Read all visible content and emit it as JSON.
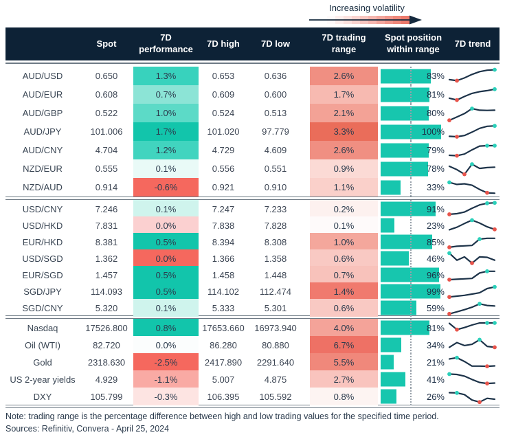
{
  "legend": {
    "label": "Increasing volatility",
    "gradient": [
      "#fefafa",
      "#fdeeec",
      "#fbe2df",
      "#f9d4d0",
      "#f7c6c0",
      "#f5b7b0",
      "#f2a79e",
      "#f0978c",
      "#ee887b",
      "#ec7a6c"
    ],
    "arrow_color": "#14293d"
  },
  "colors": {
    "header_bg": "#0d2236",
    "header_text": "#ffffff",
    "bar_teal": "#17c6ae",
    "sparkline": "#1d3349",
    "dot_teal": "#2bd0ba",
    "dot_red": "#e8544b",
    "divider": "#6e7a85",
    "body_text": "#3d4654"
  },
  "chart_data": {
    "type": "table",
    "columns": [
      [
        ""
      ],
      [
        "Spot"
      ],
      [
        "7D",
        "performance"
      ],
      [
        "7D high"
      ],
      [
        "7D low"
      ],
      [
        "7D trading",
        "range"
      ],
      [
        "Spot position",
        "within range"
      ],
      [
        "7D trend"
      ]
    ],
    "position_axis": {
      "min": 0,
      "max": 100,
      "reference_line_pct": 50
    },
    "sections": [
      {
        "rows": [
          {
            "label": "AUD/USD",
            "spot": "0.650",
            "perf": "1.3%",
            "perf_bg": "#38d2bd",
            "high": "0.653",
            "low": "0.636",
            "range": "2.6%",
            "range_bg": "#f08f82",
            "position_pct": 83,
            "position_label": "83%",
            "trend": {
              "points": [
                2.5,
                2.0,
                3.3,
                5.0,
                6.3,
                7.0,
                7.2
              ],
              "dots": [
                {
                  "i": 1,
                  "c": "red"
                },
                {
                  "i": 6,
                  "c": "teal"
                }
              ]
            }
          },
          {
            "label": "AUD/EUR",
            "spot": "0.608",
            "perf": "0.7%",
            "perf_bg": "#8ce4d6",
            "high": "0.609",
            "low": "0.600",
            "range": "1.7%",
            "range_bg": "#f7bab1",
            "position_pct": 81,
            "position_label": "81%",
            "trend": {
              "points": [
                2.5,
                1.6,
                3.3,
                4.8,
                5.6,
                6.1,
                6.8
              ],
              "dots": [
                {
                  "i": 1,
                  "c": "red"
                },
                {
                  "i": 6,
                  "c": "teal"
                }
              ]
            }
          },
          {
            "label": "AUD/GBP",
            "spot": "0.522",
            "perf": "1.0%",
            "perf_bg": "#5cdac7",
            "high": "0.524",
            "low": "0.513",
            "range": "2.1%",
            "range_bg": "#f3a296",
            "position_pct": 80,
            "position_label": "80%",
            "trend": {
              "points": [
                0.8,
                2.4,
                4.0,
                6.4,
                5.6,
                5.5,
                5.6
              ],
              "dots": [
                {
                  "i": 0,
                  "c": "red"
                },
                {
                  "i": 3,
                  "c": "teal"
                }
              ]
            }
          },
          {
            "label": "AUD/JPY",
            "spot": "101.006",
            "perf": "1.7%",
            "perf_bg": "#12c5ab",
            "high": "101.020",
            "low": "97.779",
            "range": "3.3%",
            "range_bg": "#ea6d5a",
            "position_pct": 100,
            "position_label": "100%",
            "trend": {
              "points": [
                2.0,
                1.8,
                2.4,
                4.0,
                5.8,
                6.8,
                7.0
              ],
              "dots": [
                {
                  "i": 1,
                  "c": "red"
                },
                {
                  "i": 6,
                  "c": "teal"
                }
              ]
            }
          },
          {
            "label": "AUD/CNY",
            "spot": "4.704",
            "perf": "1.2%",
            "perf_bg": "#41d4bf",
            "high": "4.729",
            "low": "4.609",
            "range": "2.6%",
            "range_bg": "#f08f82",
            "position_pct": 79,
            "position_label": "79%",
            "trend": {
              "points": [
                1.8,
                1.6,
                2.4,
                4.4,
                6.2,
                6.4,
                6.4
              ],
              "dots": [
                {
                  "i": 1,
                  "c": "red"
                },
                {
                  "i": 5,
                  "c": "teal"
                },
                {
                  "i": 6,
                  "c": "teal"
                }
              ]
            }
          },
          {
            "label": "NZD/EUR",
            "spot": "0.555",
            "perf": "0.1%",
            "perf_bg": "#e9faf7",
            "high": "0.556",
            "low": "0.551",
            "range": "0.9%",
            "range_bg": "#fbdad5",
            "position_pct": 78,
            "position_label": "78%",
            "trend": {
              "points": [
                5.4,
                3.8,
                1.6,
                6.4,
                4.4,
                4.8,
                5.0
              ],
              "dots": [
                {
                  "i": 2,
                  "c": "red"
                },
                {
                  "i": 3,
                  "c": "teal"
                }
              ]
            }
          },
          {
            "label": "NZD/AUD",
            "spot": "0.914",
            "perf": "-0.6%",
            "perf_bg": "#f5685e",
            "high": "0.921",
            "low": "0.910",
            "range": "1.1%",
            "range_bg": "#fad0ca",
            "position_pct": 33,
            "position_label": "33%",
            "trend": {
              "points": [
                6.6,
                5.6,
                5.9,
                5.2,
                3.2,
                1.6,
                1.4
              ],
              "dots": [
                {
                  "i": 0,
                  "c": "teal"
                },
                {
                  "i": 5,
                  "c": "red"
                }
              ]
            }
          }
        ]
      },
      {
        "rows": [
          {
            "label": "USD/CNY",
            "spot": "7.246",
            "perf": "0.1%",
            "perf_bg": "#cff4ed",
            "high": "7.247",
            "low": "7.233",
            "range": "0.2%",
            "range_bg": "#fdf1ef",
            "position_pct": 91,
            "position_label": "91%",
            "trend": {
              "points": [
                1.5,
                1.8,
                2.6,
                4.4,
                6.0,
                6.8,
                7.0
              ],
              "dots": [
                {
                  "i": 0,
                  "c": "red"
                },
                {
                  "i": 5,
                  "c": "teal"
                },
                {
                  "i": 6,
                  "c": "teal"
                }
              ]
            }
          },
          {
            "label": "USD/HKD",
            "spot": "7.831",
            "perf": "0.0%",
            "perf_bg": "#fbd0d0",
            "high": "7.838",
            "low": "7.828",
            "range": "0.1%",
            "range_bg": "#fefafa",
            "position_pct": 23,
            "position_label": "23%",
            "trend": {
              "points": [
                2.0,
                3.2,
                5.0,
                6.6,
                5.2,
                3.4,
                2.2
              ],
              "dots": [
                {
                  "i": 3,
                  "c": "teal"
                },
                {
                  "i": 6,
                  "c": "red"
                }
              ]
            }
          },
          {
            "label": "EUR/HKD",
            "spot": "8.381",
            "perf": "0.5%",
            "perf_bg": "#12c5ab",
            "high": "8.394",
            "low": "8.308",
            "range": "1.0%",
            "range_bg": "#f4a79c",
            "position_pct": 85,
            "position_label": "85%",
            "trend": {
              "points": [
                1.5,
                2.0,
                2.2,
                2.4,
                5.4,
                5.8,
                5.8
              ],
              "dots": [
                {
                  "i": 0,
                  "c": "red"
                },
                {
                  "i": 4,
                  "c": "teal"
                }
              ]
            }
          },
          {
            "label": "USD/SGD",
            "spot": "1.362",
            "perf": "0.0%",
            "perf_bg": "#f5685e",
            "high": "1.366",
            "low": "1.358",
            "range": "0.6%",
            "range_bg": "#f9c9c3",
            "position_pct": 46,
            "position_label": "46%",
            "trend": {
              "points": [
                6.6,
                3.2,
                4.8,
                1.8,
                4.8,
                4.6,
                3.2
              ],
              "dots": [
                {
                  "i": 0,
                  "c": "teal"
                },
                {
                  "i": 3,
                  "c": "red"
                }
              ]
            }
          },
          {
            "label": "EUR/SGD",
            "spot": "1.457",
            "perf": "0.5%",
            "perf_bg": "#12c5ab",
            "high": "1.458",
            "low": "1.448",
            "range": "0.7%",
            "range_bg": "#f8c2bb",
            "position_pct": 96,
            "position_label": "96%",
            "trend": {
              "points": [
                1.8,
                2.0,
                2.2,
                2.4,
                5.0,
                5.8,
                5.8
              ],
              "dots": [
                {
                  "i": 0,
                  "c": "red"
                },
                {
                  "i": 5,
                  "c": "teal"
                }
              ]
            }
          },
          {
            "label": "SGD/JPY",
            "spot": "114.093",
            "perf": "0.5%",
            "perf_bg": "#12c5ab",
            "high": "114.102",
            "low": "112.474",
            "range": "1.4%",
            "range_bg": "#f07a6e",
            "position_pct": 99,
            "position_label": "99%",
            "trend": {
              "points": [
                1.4,
                1.8,
                2.2,
                2.8,
                3.4,
                5.4,
                6.2
              ],
              "dots": [
                {
                  "i": 0,
                  "c": "red"
                },
                {
                  "i": 6,
                  "c": "teal"
                }
              ]
            }
          },
          {
            "label": "SGD/CNY",
            "spot": "5.320",
            "perf": "0.1%",
            "perf_bg": "#cff4ed",
            "high": "5.333",
            "low": "5.301",
            "range": "0.6%",
            "range_bg": "#f9c9c3",
            "position_pct": 59,
            "position_label": "59%",
            "trend": {
              "points": [
                1.2,
                2.2,
                3.2,
                4.4,
                6.0,
                5.2,
                5.0
              ],
              "dots": [
                {
                  "i": 0,
                  "c": "red"
                },
                {
                  "i": 4,
                  "c": "teal"
                }
              ]
            }
          }
        ]
      },
      {
        "rows": [
          {
            "label": "Nasdaq",
            "spot": "17526.800",
            "perf": "0.8%",
            "perf_bg": "#12c5ab",
            "high": "17653.660",
            "low": "16973.940",
            "range": "4.0%",
            "range_bg": "#f4a399",
            "position_pct": 81,
            "position_label": "81%",
            "trend": {
              "points": [
                6.2,
                3.2,
                4.2,
                5.4,
                6.4,
                6.4,
                6.4
              ],
              "dots": [
                {
                  "i": 1,
                  "c": "red"
                },
                {
                  "i": 5,
                  "c": "teal"
                },
                {
                  "i": 6,
                  "c": "teal"
                }
              ]
            }
          },
          {
            "label": "Oil (WTI)",
            "spot": "82.720",
            "perf": "0.0%",
            "perf_bg": "#fbfdfd",
            "high": "86.280",
            "low": "80.880",
            "range": "6.7%",
            "range_bg": "#ee7165",
            "position_pct": 34,
            "position_label": "34%",
            "trend": {
              "points": [
                3.0,
                5.2,
                3.8,
                4.4,
                6.6,
                3.4,
                3.0
              ],
              "dots": [
                {
                  "i": 4,
                  "c": "teal"
                },
                {
                  "i": 6,
                  "c": "red"
                }
              ]
            }
          },
          {
            "label": "Gold",
            "spot": "2318.630",
            "perf": "-2.5%",
            "perf_bg": "#f5685e",
            "high": "2417.890",
            "low": "2291.640",
            "range": "5.5%",
            "range_bg": "#f0887b",
            "position_pct": 21,
            "position_label": "21%",
            "trend": {
              "points": [
                5.6,
                6.2,
                4.4,
                2.2,
                2.2,
                2.1,
                2.3
              ],
              "dots": [
                {
                  "i": 1,
                  "c": "teal"
                },
                {
                  "i": 5,
                  "c": "red"
                }
              ]
            }
          },
          {
            "label": "US 2-year yields",
            "spot": "4.929",
            "perf": "-1.1%",
            "perf_bg": "#f9aaa4",
            "high": "5.007",
            "low": "4.875",
            "range": "2.7%",
            "range_bg": "#f9c4be",
            "position_pct": 41,
            "position_label": "41%",
            "trend": {
              "points": [
                6.6,
                6.4,
                5.6,
                4.0,
                2.6,
                2.1,
                2.3
              ],
              "dots": [
                {
                  "i": 0,
                  "c": "teal"
                },
                {
                  "i": 5,
                  "c": "red"
                }
              ]
            }
          },
          {
            "label": "DXY",
            "spot": "105.799",
            "perf": "-0.3%",
            "perf_bg": "#fde4e2",
            "high": "106.395",
            "low": "105.592",
            "range": "0.8%",
            "range_bg": "#fdf4f2",
            "position_pct": 26,
            "position_label": "26%",
            "trend": {
              "points": [
                5.9,
                5.8,
                5.0,
                2.4,
                1.4,
                3.2,
                2.8
              ],
              "dots": [
                {
                  "i": 1,
                  "c": "teal"
                },
                {
                  "i": 4,
                  "c": "red"
                }
              ]
            }
          }
        ]
      }
    ]
  },
  "footer": {
    "note": "Note: trading range is the percentage difference between high and low trading values for the specified time period.",
    "sources": "Sources: Refinitiv, Convera - April 25, 2024"
  }
}
